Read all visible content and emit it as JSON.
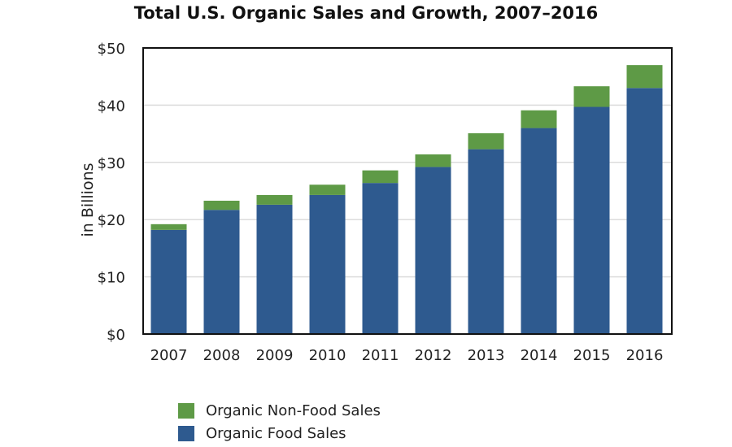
{
  "chart_data": {
    "type": "bar",
    "stacked": true,
    "title": "Total U.S. Organic Sales and Growth, 2007–2016",
    "xlabel": "",
    "ylabel": "in Billions",
    "ylim": [
      0,
      50
    ],
    "yticks": [
      "$0",
      "$10",
      "$20",
      "$30",
      "$40",
      "$50"
    ],
    "grid": true,
    "legend_position": "bottom-left",
    "categories": [
      "2007",
      "2008",
      "2009",
      "2010",
      "2011",
      "2012",
      "2013",
      "2014",
      "2015",
      "2016"
    ],
    "series": [
      {
        "name": "Organic Food Sales",
        "color": "#2e5a8f",
        "values": [
          18.2,
          21.7,
          22.6,
          24.3,
          26.4,
          29.2,
          32.3,
          36.0,
          39.7,
          43.0
        ]
      },
      {
        "name": "Organic Non-Food Sales",
        "color": "#5e9a46",
        "values": [
          1.0,
          1.6,
          1.7,
          1.8,
          2.2,
          2.2,
          2.8,
          3.1,
          3.6,
          4.0
        ]
      }
    ]
  }
}
